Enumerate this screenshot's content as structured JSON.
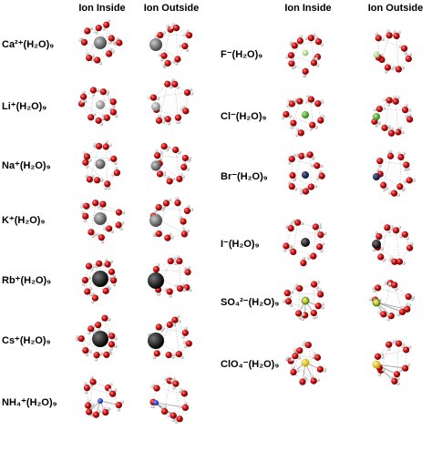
{
  "left": {
    "headers": [
      "Ion Inside",
      "Ion Outside"
    ],
    "labels": [
      "Ca²⁺(H₂O)₉",
      "Li⁺(H₂O)₉",
      "Na⁺(H₂O)₉",
      "K⁺(H₂O)₉",
      "Rb⁺(H₂O)₉",
      "Cs⁺(H₂O)₉",
      "NH₄⁺(H₂O)₉"
    ]
  },
  "right": {
    "headers": [
      "Ion Inside",
      "Ion Outside"
    ],
    "labels": [
      "F⁻(H₂O)₉",
      "Cl⁻(H₂O)₉",
      "Br⁻(H₂O)₉",
      "I⁻(H₂O)₉",
      "SO₄²⁻(H₂O)₉",
      "ClO₄⁻(H₂O)₉"
    ]
  }
}
